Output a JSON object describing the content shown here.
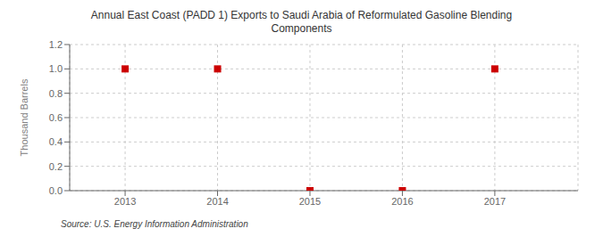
{
  "chart_data": {
    "type": "scatter",
    "title": "Annual East Coast (PADD 1) Exports to Saudi Arabia of Reformulated Gasoline Blending\nComponents",
    "ylabel": "Thousand Barrels",
    "source": "Source: U.S. Energy Information Administration",
    "x": [
      2013,
      2014,
      2015,
      2016,
      2017
    ],
    "values": [
      1.0,
      1.0,
      0.0,
      0.0,
      1.0
    ],
    "xlim": [
      2012.4,
      2017.9
    ],
    "ylim": [
      0.0,
      1.2
    ],
    "xticks": [
      2013,
      2014,
      2015,
      2016,
      2017
    ],
    "yticks": [
      {
        "value": 0.0,
        "label": "0.0"
      },
      0.2,
      0.4,
      0.6,
      0.8,
      {
        "value": 1.0,
        "label": "1.0"
      },
      1.2
    ],
    "color": "#cc0000",
    "marker": "square",
    "grid": true
  }
}
